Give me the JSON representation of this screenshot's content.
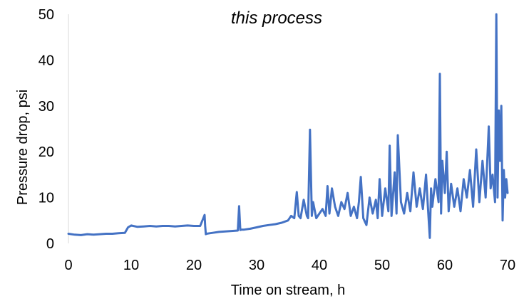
{
  "chart_data": {
    "type": "line",
    "title": "this process",
    "xlabel": "Time on stream, h",
    "ylabel": "Pressure drop, psi",
    "xlim": [
      0,
      70
    ],
    "ylim": [
      0,
      50
    ],
    "x_ticks": [
      "0",
      "10",
      "20",
      "30",
      "40",
      "50",
      "60",
      "70"
    ],
    "y_ticks": [
      "0",
      "10",
      "20",
      "30",
      "40",
      "50"
    ],
    "grid": false,
    "legend": "none",
    "series_color": "#4472C4",
    "series": [
      {
        "x": [
          0,
          1,
          2,
          3,
          4,
          5,
          6,
          7,
          8,
          9,
          9.5,
          10,
          11,
          12,
          13,
          14,
          15,
          16,
          17,
          18,
          19,
          20,
          21,
          21.7,
          21.8,
          21.9,
          22,
          22.5,
          23,
          24,
          25,
          26,
          27,
          27.2,
          27.4,
          27.6,
          28,
          29,
          30,
          31,
          32,
          33,
          34,
          35,
          35.5,
          36,
          36.4,
          36.7,
          37,
          37.5,
          38,
          38.2,
          38.5,
          38.8,
          39,
          39.5,
          40,
          40.5,
          41,
          41.3,
          41.6,
          42,
          42.5,
          43,
          43.5,
          44,
          44.5,
          45,
          45.5,
          46,
          46.3,
          46.6,
          47,
          47.5,
          48,
          48.5,
          49,
          49.3,
          49.6,
          50,
          50.5,
          51,
          51.2,
          51.5,
          52,
          52.3,
          52.5,
          53,
          53.5,
          54,
          54.5,
          55,
          55.5,
          56,
          56.5,
          57,
          57.3,
          57.6,
          57.8,
          58,
          58.5,
          59,
          59.2,
          59.4,
          59.6,
          60,
          60.3,
          60.6,
          61,
          61.5,
          62,
          62.5,
          63,
          63.5,
          64,
          64.5,
          65,
          65.5,
          66,
          66.5,
          67,
          67.3,
          67.6,
          68,
          68.2,
          68.4,
          68.6,
          68.8,
          69,
          69.2,
          69.4,
          69.6,
          69.8,
          70
        ],
        "y": [
          2.1,
          1.9,
          1.8,
          2.0,
          1.9,
          2.0,
          2.1,
          2.1,
          2.2,
          2.3,
          3.5,
          3.9,
          3.6,
          3.7,
          3.8,
          3.7,
          3.8,
          3.8,
          3.7,
          3.8,
          3.9,
          3.8,
          3.8,
          6.2,
          3.8,
          2.0,
          2.1,
          2.2,
          2.3,
          2.5,
          2.6,
          2.7,
          2.8,
          8.1,
          2.9,
          3.0,
          3.0,
          3.2,
          3.5,
          3.8,
          4.0,
          4.2,
          4.5,
          5.0,
          6.0,
          5.5,
          11.2,
          6.0,
          5.5,
          9.5,
          6.0,
          5.5,
          24.8,
          6.0,
          9.0,
          5.5,
          6.5,
          7.5,
          6.0,
          12.5,
          6.5,
          12.0,
          8.0,
          6.0,
          9.0,
          7.5,
          11.0,
          6.0,
          8.0,
          5.5,
          9.0,
          14.5,
          5.5,
          4.0,
          10.0,
          6.5,
          9.5,
          5.5,
          14.0,
          6.0,
          12.0,
          7.0,
          21.3,
          6.0,
          15.5,
          6.5,
          23.6,
          9.0,
          6.5,
          11.0,
          7.0,
          15.5,
          8.0,
          12.0,
          7.5,
          15.0,
          8.0,
          1.2,
          12.0,
          8.0,
          14.0,
          9.0,
          37.0,
          6.5,
          18.0,
          11.0,
          20.0,
          7.0,
          13.0,
          8.0,
          12.0,
          7.0,
          14.0,
          10.0,
          16.0,
          8.0,
          20.5,
          9.0,
          18.0,
          10.0,
          25.5,
          12.0,
          15.0,
          9.0,
          50.0,
          10.0,
          29.0,
          18.0,
          30.0,
          5.0,
          16.0,
          10.0,
          14.0,
          11.0
        ]
      }
    ]
  }
}
